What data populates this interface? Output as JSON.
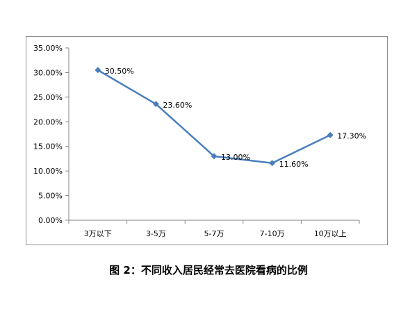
{
  "caption": "图 2：不同收入居民经常去医院看病的比例",
  "chart_data": {
    "type": "line",
    "categories": [
      "3万以下",
      "3-5万",
      "5-7万",
      "7-10万",
      "10万以上"
    ],
    "values": [
      30.5,
      23.6,
      13.0,
      11.6,
      17.3
    ],
    "data_labels": [
      "30.50%",
      "23.60%",
      "13.00%",
      "11.60%",
      "17.30%"
    ],
    "y_ticks": [
      "0.00%",
      "5.00%",
      "10.00%",
      "15.00%",
      "20.00%",
      "25.00%",
      "30.00%",
      "35.00%"
    ],
    "ylim": [
      0,
      35
    ],
    "grid": false,
    "legend": "none",
    "series_color": "#4a7ebb"
  }
}
